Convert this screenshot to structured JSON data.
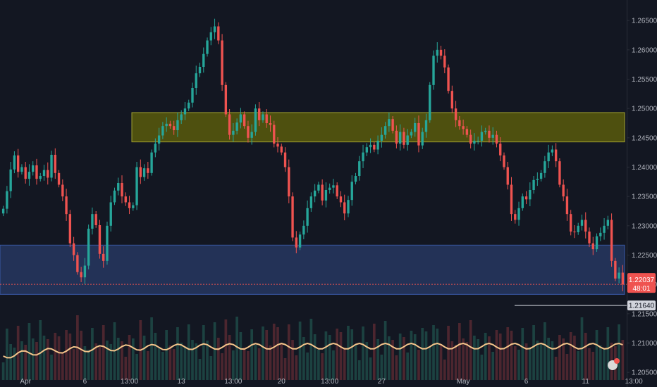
{
  "chart_data": {
    "type": "candlestick",
    "y_axis": {
      "ticks": [
        "1.26500",
        "1.26000",
        "1.25500",
        "1.25000",
        "1.24500",
        "1.24000",
        "1.23500",
        "1.23000",
        "1.22500",
        "1.22000",
        "1.21500",
        "1.21000",
        "1.20500"
      ],
      "ylim": [
        1.2025,
        1.2685
      ]
    },
    "x_axis": {
      "ticks": [
        {
          "label": "Apr",
          "index": 6
        },
        {
          "label": "6",
          "index": 22
        },
        {
          "label": "13:00",
          "index": 34
        },
        {
          "label": "13",
          "index": 48
        },
        {
          "label": "13:00",
          "index": 62
        },
        {
          "label": "20",
          "index": 75
        },
        {
          "label": "13:00",
          "index": 88
        },
        {
          "label": "27",
          "index": 102
        },
        {
          "label": "May",
          "index": 124
        },
        {
          "label": "6",
          "index": 141
        },
        {
          "label": "11",
          "index": 157
        },
        {
          "label": "13:00",
          "index": 170
        }
      ]
    },
    "last_price": {
      "value": "1.22037",
      "countdown": "48:01"
    },
    "reference_level": {
      "value": "1.21640",
      "price": 1.2164
    },
    "resistance_zone": [
      1.2443,
      1.2493
    ],
    "support_zone": [
      1.2183,
      1.2267
    ],
    "colors": {
      "background": "#131722",
      "up": "#26a69a",
      "down": "#ef5350",
      "resistance": "#808000",
      "support": "#2a3c6a",
      "moving_average": "#f5c58b",
      "last_price": "#ef5350",
      "reference": "#d1d4dc"
    },
    "closes": [
      1.2329,
      1.2359,
      1.2396,
      1.242,
      1.2392,
      1.24,
      1.238,
      1.2392,
      1.2403,
      1.238,
      1.2385,
      1.2395,
      1.2382,
      1.2421,
      1.239,
      1.237,
      1.235,
      1.232,
      1.227,
      1.225,
      1.2221,
      1.2212,
      1.2232,
      1.2295,
      1.232,
      1.2301,
      1.2252,
      1.224,
      1.23,
      1.234,
      1.236,
      1.2373,
      1.235,
      1.234,
      1.233,
      1.2335,
      1.24,
      1.2383,
      1.2398,
      1.239,
      1.2425,
      1.244,
      1.2454,
      1.247,
      1.2474,
      1.247,
      1.2463,
      1.248,
      1.249,
      1.25,
      1.251,
      1.2535,
      1.256,
      1.2571,
      1.2593,
      1.2616,
      1.263,
      1.264,
      1.2616,
      1.254,
      1.249,
      1.2455,
      1.2462,
      1.2476,
      1.249,
      1.247,
      1.245,
      1.246,
      1.25,
      1.248,
      1.249,
      1.2475,
      1.2472,
      1.244,
      1.2435,
      1.2425,
      1.24,
      1.235,
      1.228,
      1.2263,
      1.2285,
      1.23,
      1.233,
      1.235,
      1.236,
      1.237,
      1.2343,
      1.2361,
      1.2365,
      1.2369,
      1.235,
      1.234,
      1.2321,
      1.2344,
      1.2375,
      1.2385,
      1.241,
      1.2425,
      1.2434,
      1.2438,
      1.243,
      1.2445,
      1.2455,
      1.247,
      1.2482,
      1.2462,
      1.244,
      1.246,
      1.2438,
      1.2454,
      1.246,
      1.2475,
      1.2437,
      1.246,
      1.248,
      1.254,
      1.259,
      1.26,
      1.259,
      1.257,
      1.253,
      1.25,
      1.248,
      1.247,
      1.2465,
      1.2455,
      1.244,
      1.2445,
      1.2445,
      1.246,
      1.2462,
      1.245,
      1.2455,
      1.244,
      1.242,
      1.24,
      1.237,
      1.232,
      1.231,
      1.233,
      1.235,
      1.2345,
      1.2361,
      1.2378,
      1.238,
      1.239,
      1.241,
      1.2425,
      1.243,
      1.241,
      1.237,
      1.235,
      1.232,
      1.229,
      1.2289,
      1.23,
      1.231,
      1.229,
      1.227,
      1.226,
      1.2282,
      1.2288,
      1.23,
      1.231,
      1.224,
      1.221,
      1.222,
      1.22
    ]
  }
}
